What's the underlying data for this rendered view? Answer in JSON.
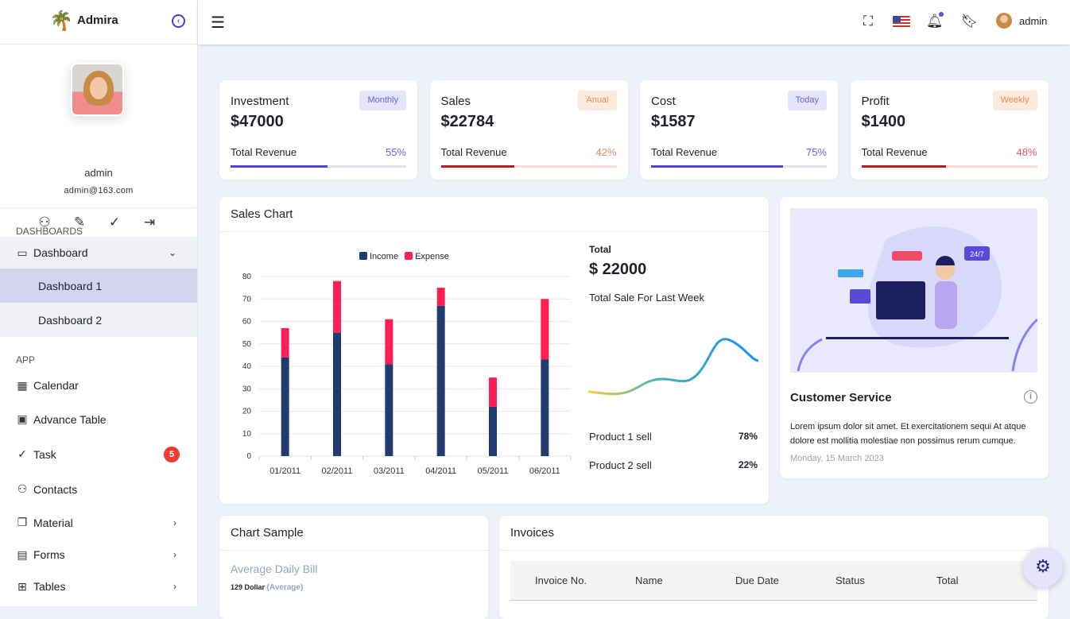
{
  "brand": {
    "name": "Admira"
  },
  "profile": {
    "name": "admin",
    "email": "admin@163.com"
  },
  "sidebar": {
    "sections": [
      "Dashboards",
      "App"
    ],
    "dashboard": "Dashboard",
    "subitems": [
      "Dashboard 1",
      "Dashboard 2"
    ],
    "items": [
      {
        "label": "Calendar",
        "icon": "calendar-icon"
      },
      {
        "label": "Advance Table",
        "icon": "table-icon"
      },
      {
        "label": "Task",
        "icon": "check-circle-icon",
        "badge": "5"
      },
      {
        "label": "Contacts",
        "icon": "users-icon"
      },
      {
        "label": "Material",
        "icon": "copy-icon"
      },
      {
        "label": "Forms",
        "icon": "form-icon"
      },
      {
        "label": "Tables",
        "icon": "grid-icon"
      }
    ]
  },
  "topbar": {
    "user": "admin"
  },
  "stats": [
    {
      "title": "Investment",
      "value": "$47000",
      "badge": "Monthly",
      "label": "Total Revenue",
      "percent": "55%",
      "progress": 55,
      "color": "#4b45d1",
      "track": "#e3e3ec",
      "badge_bg": "#e5e4fb",
      "badge_fg": "#6a62e0",
      "pct_fg": "#6a62e0"
    },
    {
      "title": "Sales",
      "value": "$22784",
      "badge": "Anual",
      "label": "Total Revenue",
      "percent": "42%",
      "progress": 42,
      "color": "#b71c1c",
      "track": "#fbd9d6",
      "badge_bg": "#fdeadd",
      "badge_fg": "#f08a4b",
      "pct_fg": "#f08a4b"
    },
    {
      "title": "Cost",
      "value": "$1587",
      "badge": "Today",
      "label": "Total Revenue",
      "percent": "75%",
      "progress": 75,
      "color": "#4b45d1",
      "track": "#e3e3ec",
      "badge_bg": "#e5e4fb",
      "badge_fg": "#6a62e0",
      "pct_fg": "#6a62e0"
    },
    {
      "title": "Profit",
      "value": "$1400",
      "badge": "Weekly",
      "label": "Total Revenue",
      "percent": "48%",
      "progress": 48,
      "color": "#b71c1c",
      "track": "#fbd9d6",
      "badge_bg": "#fdeadd",
      "badge_fg": "#f08a4b",
      "pct_fg": "#e65a5a"
    }
  ],
  "sales_chart": {
    "title": "Sales Chart",
    "total_label": "Total",
    "total": "$ 22000",
    "subtitle": "Total Sale For Last Week",
    "products": [
      {
        "label": "Product 1 sell",
        "value": "78%"
      },
      {
        "label": "Product 2 sell",
        "value": "22%"
      }
    ]
  },
  "chart_data": {
    "type": "bar",
    "stacked": true,
    "categories": [
      "01/2011",
      "02/2011",
      "03/2011",
      "04/2011",
      "05/2011",
      "06/2011"
    ],
    "series": [
      {
        "name": "Income",
        "color": "#1f3b70",
        "values": [
          44,
          55,
          41,
          67,
          22,
          43
        ]
      },
      {
        "name": "Expense",
        "color": "#ff1f57",
        "values": [
          13,
          23,
          20,
          8,
          13,
          27
        ]
      }
    ],
    "ylim": [
      0,
      80
    ],
    "yticks": [
      0,
      10,
      20,
      30,
      40,
      50,
      60,
      70,
      80
    ],
    "grid": true,
    "legend": "top"
  },
  "customer": {
    "title": "Customer Service",
    "text": "Lorem ipsum dolor sit amet. Et exercitationem sequi At atque dolore est mollitia molestiae non possimus rerum cumque.",
    "date": "Monday, 15 March 2023",
    "bubble": "24/7"
  },
  "chart_sample": {
    "title": "Chart Sample",
    "subtitle": "Average Daily Bill",
    "amount": "129 Dollar",
    "note": "(Average)"
  },
  "invoices": {
    "title": "Invoices",
    "columns": [
      "Invoice No.",
      "Name",
      "Due Date",
      "Status",
      "Total"
    ]
  }
}
